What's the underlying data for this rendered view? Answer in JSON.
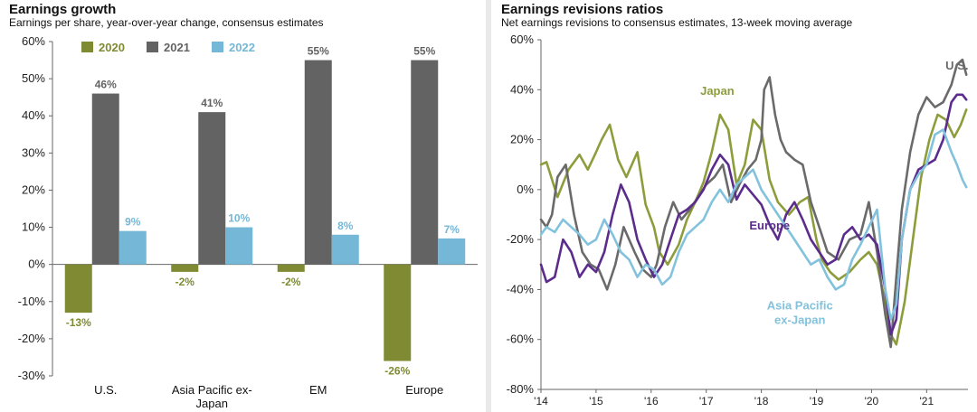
{
  "left": {
    "title": "Earnings growth",
    "subtitle": "Earnings per share, year-over-year change, consensus estimates"
  },
  "right": {
    "title": "Earnings revisions ratios",
    "subtitle": "Net earnings revisions to consensus estimates, 13-week moving average"
  },
  "chart_data": [
    {
      "type": "bar",
      "title": "Earnings growth",
      "subtitle": "Earnings per share, year-over-year change, consensus estimates",
      "categories": [
        "U.S.",
        "Asia Pacific ex-Japan",
        "EM",
        "Europe"
      ],
      "category_lines": [
        [
          "U.S."
        ],
        [
          "Asia Pacific ex-",
          "Japan"
        ],
        [
          "EM"
        ],
        [
          "Europe"
        ]
      ],
      "series": [
        {
          "name": "2020",
          "color": "#7f8a32",
          "values": [
            -13,
            -2,
            -2,
            -26
          ],
          "labels": [
            "-13%",
            "-2%",
            "-2%",
            "-26%"
          ]
        },
        {
          "name": "2021",
          "color": "#636363",
          "values": [
            46,
            41,
            55,
            55
          ],
          "labels": [
            "46%",
            "41%",
            "55%",
            "55%"
          ]
        },
        {
          "name": "2022",
          "color": "#75b7d6",
          "values": [
            9,
            10,
            8,
            7
          ],
          "labels": [
            "9%",
            "10%",
            "8%",
            "7%"
          ]
        }
      ],
      "yticks": [
        -30,
        -20,
        -10,
        0,
        10,
        20,
        30,
        40,
        50,
        60
      ],
      "ytick_labels": [
        "-30%",
        "-20%",
        "-10%",
        "0%",
        "10%",
        "20%",
        "30%",
        "40%",
        "50%",
        "60%"
      ],
      "ylim": [
        -30,
        60
      ],
      "legend": "top-left",
      "grid": false
    },
    {
      "type": "line",
      "title": "Earnings revisions ratios",
      "subtitle": "Net earnings revisions to consensus estimates, 13-week moving average",
      "xlim": [
        2014,
        2021.75
      ],
      "xticks": [
        2014,
        2015,
        2016,
        2017,
        2018,
        2019,
        2020,
        2021
      ],
      "xtick_labels": [
        "'14",
        "'15",
        "'16",
        "'17",
        "'18",
        "'19",
        "'20",
        "'21"
      ],
      "yticks": [
        -80,
        -60,
        -40,
        -20,
        0,
        20,
        40,
        60
      ],
      "ytick_labels": [
        "-80%",
        "-60%",
        "-40%",
        "-20%",
        "0%",
        "20%",
        "40%",
        "60%"
      ],
      "ylim": [
        -80,
        60
      ],
      "grid": false,
      "series": [
        {
          "name": "Japan",
          "color": "#8d9d3b",
          "label_pos": [
            2017.2,
            38
          ],
          "x": [
            2014.0,
            2014.1,
            2014.3,
            2014.5,
            2014.7,
            2014.85,
            2015.0,
            2015.1,
            2015.25,
            2015.4,
            2015.55,
            2015.75,
            2015.9,
            2016.05,
            2016.15,
            2016.3,
            2016.5,
            2016.65,
            2016.8,
            2016.95,
            2017.1,
            2017.25,
            2017.4,
            2017.55,
            2017.7,
            2017.85,
            2018.0,
            2018.15,
            2018.3,
            2018.5,
            2018.7,
            2018.85,
            2019.0,
            2019.1,
            2019.25,
            2019.4,
            2019.6,
            2019.8,
            2019.95,
            2020.1,
            2020.25,
            2020.35,
            2020.45,
            2020.6,
            2020.75,
            2020.9,
            2021.05,
            2021.2,
            2021.35,
            2021.5,
            2021.62,
            2021.72
          ],
          "y": [
            10,
            11,
            -3,
            8,
            14,
            8,
            15,
            20,
            26,
            12,
            5,
            15,
            -6,
            -15,
            -25,
            -30,
            -22,
            -12,
            -5,
            3,
            15,
            30,
            24,
            2,
            10,
            28,
            24,
            4,
            -5,
            -10,
            -5,
            -3,
            -20,
            -28,
            -33,
            -36,
            -33,
            -28,
            -25,
            -30,
            -45,
            -58,
            -62,
            -45,
            -20,
            5,
            20,
            30,
            28,
            21,
            26,
            32
          ]
        },
        {
          "name": "U.S.",
          "color": "#6a6a6a",
          "label_pos": [
            2021.55,
            48
          ],
          "x": [
            2014.0,
            2014.1,
            2014.2,
            2014.3,
            2014.45,
            2014.6,
            2014.75,
            2014.9,
            2015.05,
            2015.2,
            2015.35,
            2015.5,
            2015.7,
            2015.85,
            2016.0,
            2016.1,
            2016.25,
            2016.4,
            2016.55,
            2016.7,
            2016.85,
            2017.0,
            2017.15,
            2017.3,
            2017.45,
            2017.6,
            2017.75,
            2017.9,
            2018.0,
            2018.05,
            2018.15,
            2018.25,
            2018.35,
            2018.45,
            2018.6,
            2018.75,
            2018.9,
            2019.05,
            2019.2,
            2019.4,
            2019.6,
            2019.8,
            2019.95,
            2020.1,
            2020.25,
            2020.35,
            2020.45,
            2020.55,
            2020.7,
            2020.85,
            2021.0,
            2021.15,
            2021.3,
            2021.45,
            2021.55,
            2021.65,
            2021.72
          ],
          "y": [
            -12,
            -15,
            -10,
            5,
            10,
            -10,
            -25,
            -30,
            -32,
            -40,
            -30,
            -15,
            -25,
            -32,
            -35,
            -30,
            -15,
            -5,
            -12,
            -8,
            -3,
            2,
            5,
            10,
            -5,
            2,
            8,
            12,
            20,
            40,
            45,
            30,
            20,
            15,
            12,
            10,
            -5,
            -15,
            -25,
            -28,
            -20,
            -18,
            -5,
            -25,
            -50,
            -63,
            -35,
            -8,
            15,
            30,
            37,
            33,
            35,
            42,
            50,
            52,
            46
          ]
        },
        {
          "name": "Europe",
          "color": "#5b2c8c",
          "label_pos": [
            2018.15,
            -16
          ],
          "x": [
            2014.0,
            2014.1,
            2014.25,
            2014.4,
            2014.55,
            2014.7,
            2014.85,
            2015.0,
            2015.15,
            2015.3,
            2015.45,
            2015.6,
            2015.75,
            2015.9,
            2016.05,
            2016.2,
            2016.35,
            2016.5,
            2016.65,
            2016.8,
            2016.95,
            2017.1,
            2017.25,
            2017.4,
            2017.55,
            2017.7,
            2017.85,
            2018.0,
            2018.15,
            2018.3,
            2018.45,
            2018.6,
            2018.75,
            2018.9,
            2019.05,
            2019.2,
            2019.35,
            2019.5,
            2019.65,
            2019.8,
            2019.95,
            2020.1,
            2020.25,
            2020.35,
            2020.45,
            2020.55,
            2020.7,
            2020.85,
            2021.0,
            2021.15,
            2021.3,
            2021.45,
            2021.55,
            2021.65,
            2021.72
          ],
          "y": [
            -30,
            -37,
            -35,
            -20,
            -25,
            -35,
            -30,
            -33,
            -25,
            -10,
            2,
            -5,
            -20,
            -28,
            -35,
            -30,
            -20,
            -10,
            -8,
            -5,
            0,
            8,
            14,
            10,
            -4,
            2,
            -2,
            -6,
            -14,
            -20,
            -10,
            -5,
            -12,
            -20,
            -25,
            -30,
            -28,
            -18,
            -15,
            -20,
            -18,
            -22,
            -40,
            -58,
            -52,
            -20,
            0,
            8,
            10,
            12,
            20,
            35,
            38,
            38,
            36
          ]
        },
        {
          "name": "Asia Pacific ex-Japan",
          "label_lines": [
            "Asia Pacific",
            "ex-Japan"
          ],
          "color": "#82c2dd",
          "label_pos": [
            2018.7,
            -48
          ],
          "x": [
            2014.0,
            2014.1,
            2014.25,
            2014.4,
            2014.55,
            2014.7,
            2014.85,
            2015.0,
            2015.15,
            2015.3,
            2015.45,
            2015.6,
            2015.75,
            2015.9,
            2016.05,
            2016.2,
            2016.35,
            2016.5,
            2016.65,
            2016.8,
            2016.95,
            2017.1,
            2017.25,
            2017.4,
            2017.55,
            2017.7,
            2017.85,
            2018.0,
            2018.15,
            2018.3,
            2018.45,
            2018.6,
            2018.75,
            2018.9,
            2019.05,
            2019.2,
            2019.35,
            2019.5,
            2019.65,
            2019.8,
            2019.95,
            2020.1,
            2020.25,
            2020.35,
            2020.45,
            2020.55,
            2020.7,
            2020.85,
            2021.0,
            2021.15,
            2021.3,
            2021.45,
            2021.55,
            2021.65,
            2021.72
          ],
          "y": [
            -18,
            -15,
            -17,
            -12,
            -15,
            -18,
            -22,
            -20,
            -12,
            -18,
            -25,
            -28,
            -35,
            -30,
            -32,
            -38,
            -35,
            -25,
            -18,
            -15,
            -12,
            -5,
            0,
            -5,
            2,
            5,
            8,
            0,
            -5,
            -10,
            -15,
            -20,
            -25,
            -30,
            -28,
            -35,
            -40,
            -38,
            -28,
            -22,
            -15,
            -8,
            -40,
            -52,
            -46,
            -20,
            0,
            6,
            10,
            22,
            24,
            15,
            10,
            4,
            1
          ]
        }
      ]
    }
  ]
}
